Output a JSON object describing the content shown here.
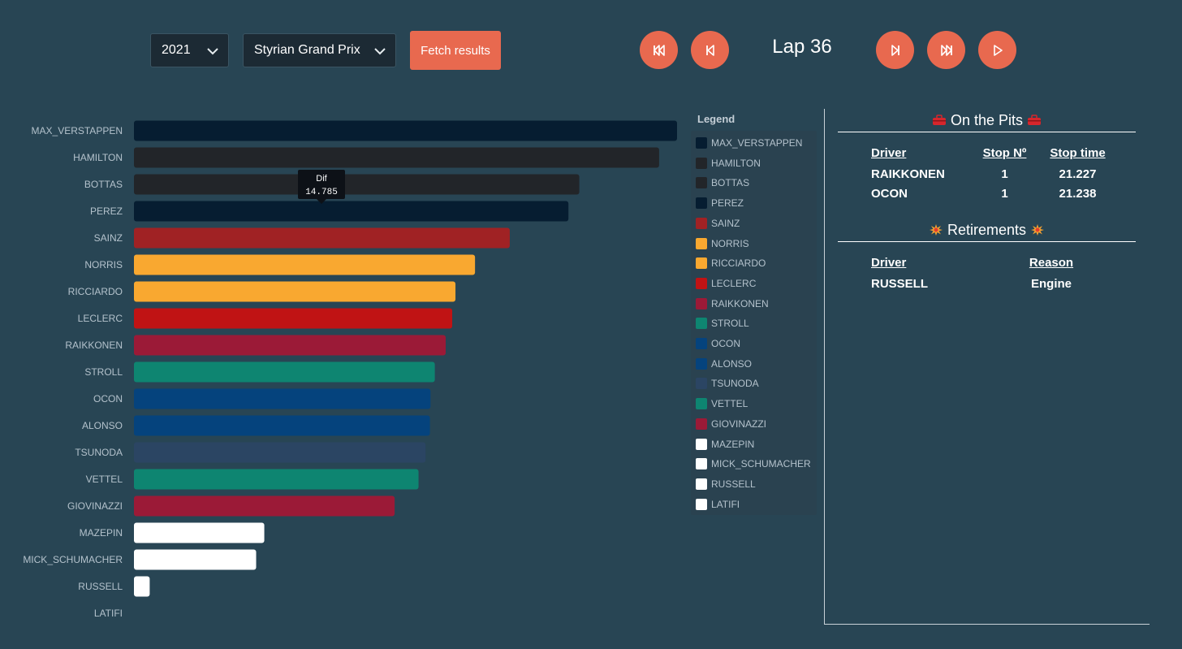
{
  "toolbar": {
    "year": "2021",
    "race": "Styrian Grand Prix",
    "fetch_label": "Fetch results",
    "lap_label": "Lap 36"
  },
  "colors": {
    "background": "#284554",
    "accent": "#e8694f"
  },
  "tooltip": {
    "title": "Dif",
    "value": "14.785",
    "driver": "PEREZ"
  },
  "legend": {
    "title": "Legend"
  },
  "chart_data": {
    "type": "bar",
    "orientation": "horizontal",
    "categories": [
      "MAX_VERSTAPPEN",
      "HAMILTON",
      "BOTTAS",
      "PEREZ",
      "SAINZ",
      "NORRIS",
      "RICCIARDO",
      "LECLERC",
      "RAIKKONEN",
      "STROLL",
      "OCON",
      "ALONSO",
      "TSUNODA",
      "VETTEL",
      "GIOVINAZZI",
      "MAZEPIN",
      "MICK_SCHUMACHER",
      "RUSSELL",
      "LATIFI"
    ],
    "values": [
      100,
      96.7,
      82.0,
      80.0,
      69.2,
      62.8,
      59.2,
      58.6,
      57.4,
      55.4,
      54.6,
      54.5,
      53.7,
      52.4,
      48.0,
      24.0,
      22.5,
      2.9,
      0
    ],
    "colors": [
      "#061d31",
      "#222529",
      "#222529",
      "#061d31",
      "#a02224",
      "#f9a830",
      "#f9a830",
      "#c01314",
      "#9b1a37",
      "#0e8571",
      "#05437d",
      "#05437d",
      "#2b4563",
      "#0e8571",
      "#9b1a37",
      "#ffffff",
      "#ffffff",
      "#ffffff",
      "#ffffff"
    ],
    "title": "",
    "xlabel": "",
    "ylabel": "",
    "xlim": [
      0,
      100
    ],
    "grid": false,
    "legend_position": "right"
  },
  "pits": {
    "title": "On the Pits",
    "headers": [
      "Driver",
      "Stop Nº",
      "Stop time"
    ],
    "rows": [
      [
        "RAIKKONEN",
        "1",
        "21.227"
      ],
      [
        "OCON",
        "1",
        "21.238"
      ]
    ]
  },
  "retirements": {
    "title": "Retirements",
    "headers": [
      "Driver",
      "Reason"
    ],
    "rows": [
      [
        "RUSSELL",
        "Engine"
      ]
    ]
  }
}
